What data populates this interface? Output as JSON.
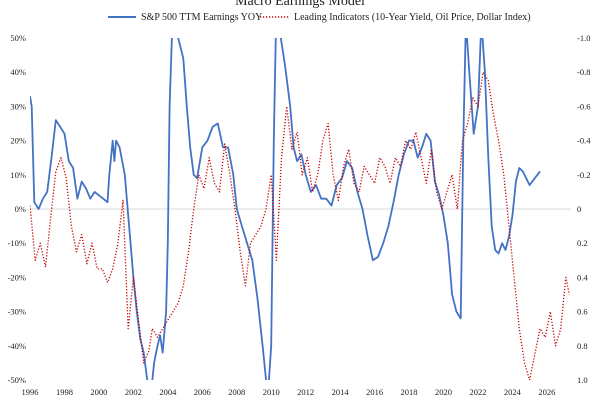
{
  "chart_data": {
    "type": "line",
    "title": "Macro Earnings Model",
    "xlabel": "",
    "x_range": [
      1996,
      2027.4
    ],
    "x_ticks": [
      "1996",
      "1998",
      "2000",
      "2002",
      "2004",
      "2006",
      "2008",
      "2010",
      "2012",
      "2014",
      "2016",
      "2018",
      "2020",
      "2022",
      "2024",
      "2026"
    ],
    "left_axis": {
      "ylim": [
        -50,
        50
      ],
      "ticks": [
        "50%",
        "40%",
        "30%",
        "20%",
        "10%",
        "0%",
        "-10%",
        "-20%",
        "-30%",
        "-40%",
        "-50%"
      ]
    },
    "right_axis": {
      "ylim": [
        -1.0,
        1.0
      ],
      "inverted": true,
      "ticks": [
        "-1.0",
        "-0.8",
        "-0.6",
        "-0.4",
        "-0.2",
        "0",
        "0.2",
        "0.4",
        "0.6",
        "0.8",
        "1.0"
      ]
    },
    "grid": false,
    "legend_position": "top",
    "series": [
      {
        "name": "S&P 500 TTM Earnings YOY",
        "axis": "left",
        "color": "#4472C4",
        "style": "solid",
        "points": [
          [
            1996.0,
            33
          ],
          [
            1996.1,
            30
          ],
          [
            1996.25,
            2
          ],
          [
            1996.5,
            0
          ],
          [
            1996.75,
            3
          ],
          [
            1997.0,
            5
          ],
          [
            1997.25,
            15
          ],
          [
            1997.5,
            26
          ],
          [
            1997.75,
            24
          ],
          [
            1998.0,
            22
          ],
          [
            1998.25,
            14
          ],
          [
            1998.5,
            12
          ],
          [
            1998.75,
            3
          ],
          [
            1999.0,
            8
          ],
          [
            1999.25,
            6
          ],
          [
            1999.5,
            3
          ],
          [
            1999.75,
            5
          ],
          [
            2000.0,
            4
          ],
          [
            2000.25,
            3
          ],
          [
            2000.5,
            2
          ],
          [
            2000.6,
            10
          ],
          [
            2000.8,
            20
          ],
          [
            2000.9,
            14
          ],
          [
            2001.0,
            20
          ],
          [
            2001.2,
            18
          ],
          [
            2001.5,
            10
          ],
          [
            2001.75,
            -5
          ],
          [
            2002.0,
            -20
          ],
          [
            2002.2,
            -30
          ],
          [
            2002.4,
            -38
          ],
          [
            2002.6,
            -42
          ],
          [
            2002.8,
            -50
          ],
          [
            2003.0,
            -55
          ],
          [
            2003.2,
            -45
          ],
          [
            2003.4,
            -40
          ],
          [
            2003.55,
            -37
          ],
          [
            2003.7,
            -42
          ],
          [
            2003.9,
            -30
          ],
          [
            2004.0,
            -10
          ],
          [
            2004.1,
            30
          ],
          [
            2004.3,
            60
          ],
          [
            2004.5,
            52
          ],
          [
            2004.7,
            48
          ],
          [
            2004.9,
            44
          ],
          [
            2005.1,
            30
          ],
          [
            2005.3,
            18
          ],
          [
            2005.5,
            10
          ],
          [
            2005.7,
            9
          ],
          [
            2006.0,
            18
          ],
          [
            2006.3,
            20
          ],
          [
            2006.6,
            24
          ],
          [
            2006.9,
            25
          ],
          [
            2007.2,
            18
          ],
          [
            2007.5,
            18
          ],
          [
            2007.8,
            10
          ],
          [
            2008.0,
            0
          ],
          [
            2008.3,
            -5
          ],
          [
            2008.6,
            -10
          ],
          [
            2008.9,
            -15
          ],
          [
            2009.2,
            -26
          ],
          [
            2009.5,
            -40
          ],
          [
            2009.8,
            -55
          ],
          [
            2010.0,
            -40
          ],
          [
            2010.15,
            20
          ],
          [
            2010.3,
            60
          ],
          [
            2010.5,
            52
          ],
          [
            2010.8,
            42
          ],
          [
            2011.1,
            30
          ],
          [
            2011.3,
            18
          ],
          [
            2011.5,
            14
          ],
          [
            2011.75,
            16
          ],
          [
            2012.0,
            10
          ],
          [
            2012.3,
            5
          ],
          [
            2012.6,
            7
          ],
          [
            2012.9,
            3
          ],
          [
            2013.2,
            3
          ],
          [
            2013.5,
            1
          ],
          [
            2013.8,
            7
          ],
          [
            2014.1,
            9
          ],
          [
            2014.4,
            14
          ],
          [
            2014.7,
            12
          ],
          [
            2015.0,
            5
          ],
          [
            2015.3,
            0
          ],
          [
            2015.6,
            -8
          ],
          [
            2015.9,
            -15
          ],
          [
            2016.2,
            -14
          ],
          [
            2016.5,
            -10
          ],
          [
            2016.8,
            -5
          ],
          [
            2017.1,
            2
          ],
          [
            2017.4,
            10
          ],
          [
            2017.7,
            16
          ],
          [
            2018.0,
            20
          ],
          [
            2018.25,
            20
          ],
          [
            2018.5,
            15
          ],
          [
            2018.75,
            18
          ],
          [
            2019.0,
            22
          ],
          [
            2019.25,
            20
          ],
          [
            2019.5,
            8
          ],
          [
            2019.75,
            4
          ],
          [
            2020.0,
            -2
          ],
          [
            2020.25,
            -10
          ],
          [
            2020.5,
            -25
          ],
          [
            2020.75,
            -30
          ],
          [
            2021.0,
            -32
          ],
          [
            2021.15,
            20
          ],
          [
            2021.3,
            55
          ],
          [
            2021.5,
            40
          ],
          [
            2021.75,
            22
          ],
          [
            2022.0,
            30
          ],
          [
            2022.2,
            55
          ],
          [
            2022.4,
            40
          ],
          [
            2022.6,
            15
          ],
          [
            2022.8,
            -5
          ],
          [
            2023.0,
            -12
          ],
          [
            2023.2,
            -13
          ],
          [
            2023.4,
            -10
          ],
          [
            2023.6,
            -12
          ],
          [
            2023.8,
            -8
          ],
          [
            2024.0,
            -2
          ],
          [
            2024.2,
            8
          ],
          [
            2024.4,
            12
          ],
          [
            2024.6,
            11
          ],
          [
            2024.8,
            9
          ],
          [
            2025.0,
            7
          ],
          [
            2025.3,
            9
          ],
          [
            2025.6,
            11
          ]
        ]
      },
      {
        "name": "Leading Indicators (10-Year Yield, Oil Price, Dollar Index)",
        "axis": "right",
        "color": "#C00000",
        "style": "dotted",
        "points": [
          [
            1996.0,
            -0.02
          ],
          [
            1996.3,
            0.3
          ],
          [
            1996.6,
            0.2
          ],
          [
            1996.9,
            0.34
          ],
          [
            1997.2,
            0.05
          ],
          [
            1997.5,
            -0.22
          ],
          [
            1997.8,
            -0.3
          ],
          [
            1998.1,
            -0.18
          ],
          [
            1998.4,
            0.1
          ],
          [
            1998.7,
            0.25
          ],
          [
            1999.0,
            0.15
          ],
          [
            1999.3,
            0.32
          ],
          [
            1999.6,
            0.2
          ],
          [
            1999.9,
            0.35
          ],
          [
            2000.2,
            0.35
          ],
          [
            2000.5,
            0.43
          ],
          [
            2000.8,
            0.35
          ],
          [
            2001.1,
            0.2
          ],
          [
            2001.4,
            -0.05
          ],
          [
            2001.7,
            0.7
          ],
          [
            2002.0,
            0.4
          ],
          [
            2002.3,
            0.65
          ],
          [
            2002.6,
            0.9
          ],
          [
            2002.9,
            0.83
          ],
          [
            2003.1,
            0.7
          ],
          [
            2003.4,
            0.75
          ],
          [
            2003.7,
            0.7
          ],
          [
            2004.0,
            0.65
          ],
          [
            2004.3,
            0.6
          ],
          [
            2004.6,
            0.55
          ],
          [
            2004.9,
            0.45
          ],
          [
            2005.2,
            0.25
          ],
          [
            2005.5,
            0.0
          ],
          [
            2005.8,
            -0.2
          ],
          [
            2006.1,
            -0.12
          ],
          [
            2006.4,
            -0.3
          ],
          [
            2006.7,
            -0.15
          ],
          [
            2007.0,
            -0.1
          ],
          [
            2007.3,
            -0.38
          ],
          [
            2007.6,
            -0.2
          ],
          [
            2007.9,
            0.0
          ],
          [
            2008.2,
            0.25
          ],
          [
            2008.5,
            0.45
          ],
          [
            2008.8,
            0.2
          ],
          [
            2009.1,
            0.15
          ],
          [
            2009.4,
            0.1
          ],
          [
            2009.7,
            0.0
          ],
          [
            2010.0,
            -0.2
          ],
          [
            2010.3,
            0.3
          ],
          [
            2010.6,
            -0.3
          ],
          [
            2010.9,
            -0.6
          ],
          [
            2011.2,
            -0.35
          ],
          [
            2011.5,
            -0.45
          ],
          [
            2011.8,
            -0.2
          ],
          [
            2012.1,
            -0.3
          ],
          [
            2012.4,
            -0.1
          ],
          [
            2012.7,
            -0.2
          ],
          [
            2013.0,
            -0.4
          ],
          [
            2013.3,
            -0.5
          ],
          [
            2013.6,
            -0.2
          ],
          [
            2013.9,
            -0.05
          ],
          [
            2014.2,
            -0.25
          ],
          [
            2014.5,
            -0.35
          ],
          [
            2014.8,
            -0.15
          ],
          [
            2015.1,
            -0.1
          ],
          [
            2015.4,
            -0.25
          ],
          [
            2015.7,
            -0.2
          ],
          [
            2016.0,
            -0.15
          ],
          [
            2016.3,
            -0.3
          ],
          [
            2016.6,
            -0.25
          ],
          [
            2016.9,
            -0.15
          ],
          [
            2017.2,
            -0.3
          ],
          [
            2017.5,
            -0.25
          ],
          [
            2017.8,
            -0.4
          ],
          [
            2018.1,
            -0.35
          ],
          [
            2018.4,
            -0.45
          ],
          [
            2018.7,
            -0.3
          ],
          [
            2019.0,
            -0.15
          ],
          [
            2019.3,
            -0.35
          ],
          [
            2019.6,
            -0.1
          ],
          [
            2019.9,
            0.0
          ],
          [
            2020.2,
            -0.1
          ],
          [
            2020.5,
            -0.2
          ],
          [
            2020.8,
            0.0
          ],
          [
            2021.1,
            -0.4
          ],
          [
            2021.4,
            -0.5
          ],
          [
            2021.7,
            -0.65
          ],
          [
            2022.0,
            -0.6
          ],
          [
            2022.3,
            -0.8
          ],
          [
            2022.6,
            -0.75
          ],
          [
            2022.9,
            -0.55
          ],
          [
            2023.2,
            -0.4
          ],
          [
            2023.5,
            -0.2
          ],
          [
            2023.8,
            0.1
          ],
          [
            2024.1,
            0.4
          ],
          [
            2024.4,
            0.7
          ],
          [
            2024.7,
            0.9
          ],
          [
            2025.0,
            1.0
          ],
          [
            2025.3,
            0.85
          ],
          [
            2025.6,
            0.7
          ],
          [
            2025.9,
            0.75
          ],
          [
            2026.2,
            0.6
          ],
          [
            2026.5,
            0.8
          ],
          [
            2026.8,
            0.7
          ],
          [
            2027.1,
            0.4
          ],
          [
            2027.3,
            0.5
          ]
        ]
      }
    ]
  }
}
